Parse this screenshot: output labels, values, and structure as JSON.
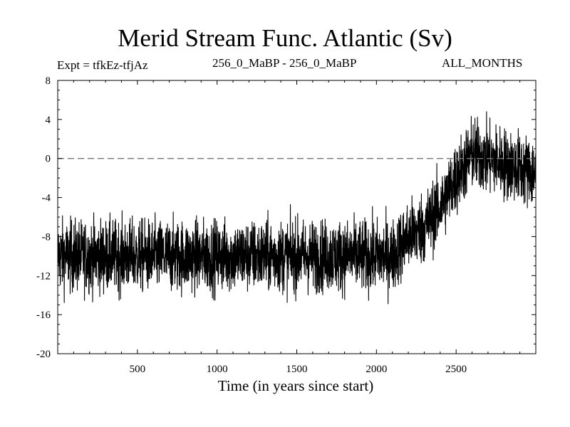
{
  "header": {
    "title": "Merid Stream Func. Atlantic (Sv)",
    "experiment": "Expt = tfkEz-tfjAz",
    "period": "256_0_MaBP - 256_0_MaBP",
    "season": "ALL_MONTHS"
  },
  "chart_data": {
    "type": "line",
    "title": "Merid Stream Func. Atlantic (Sv)",
    "xlabel": "Time (in years since start)",
    "ylabel": "",
    "xlim": [
      0,
      3000
    ],
    "ylim": [
      -20,
      8
    ],
    "x_ticks": [
      500,
      1000,
      1500,
      2000,
      2500
    ],
    "y_ticks": [
      -20,
      -16,
      -12,
      -8,
      -4,
      0,
      4,
      8
    ],
    "reference_line": {
      "y": 0,
      "style": "dashed"
    },
    "grid": false,
    "series": [
      {
        "name": "",
        "color": "#000000",
        "summary": {
          "x_step": 1,
          "mean_by_period": [
            {
              "x_start": 0,
              "x_end": 2150,
              "mean": -10
            },
            {
              "x_start": 2150,
              "x_end": 2400,
              "mean": -7
            },
            {
              "x_start": 2400,
              "x_end": 2600,
              "mean": -3
            },
            {
              "x_start": 2600,
              "x_end": 3000,
              "mean": -0.5
            }
          ],
          "min": -17.8,
          "max": 7.6
        },
        "x": [
          0,
          100,
          200,
          300,
          400,
          500,
          600,
          700,
          800,
          900,
          1000,
          1100,
          1200,
          1300,
          1400,
          1500,
          1600,
          1700,
          1800,
          1900,
          2000,
          2100,
          2200,
          2300,
          2400,
          2500,
          2600,
          2700,
          2800,
          2900,
          3000
        ],
        "y": [
          -10,
          -10,
          -10,
          -10,
          -10,
          -10,
          -10,
          -10,
          -10,
          -10,
          -10,
          -10,
          -10,
          -10,
          -10,
          -10,
          -10,
          -10,
          -10,
          -10,
          -10,
          -10,
          -8,
          -7,
          -5,
          -2,
          0.5,
          0,
          -0.5,
          -1,
          -1.5
        ]
      }
    ]
  }
}
